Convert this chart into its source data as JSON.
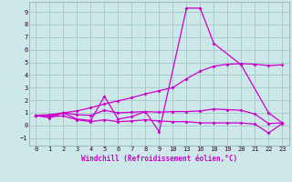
{
  "background_color": "#cce8e8",
  "grid_color": "#aacccc",
  "line_color": "#cc00cc",
  "xtick_labels": [
    "0",
    "1",
    "2",
    "3",
    "4",
    "5",
    "6",
    "7",
    "8",
    "9",
    "10",
    "13",
    "16",
    "18",
    "19",
    "20",
    "21",
    "22",
    "23"
  ],
  "xtick_pos": [
    0,
    1,
    2,
    3,
    4,
    5,
    6,
    7,
    8,
    9,
    10,
    11,
    12,
    13,
    14,
    15,
    16,
    17,
    18
  ],
  "yticks": [
    -1,
    0,
    1,
    2,
    3,
    4,
    5,
    6,
    7,
    8,
    9
  ],
  "xlabel": "Windchill (Refroidissement éolien,°C)",
  "ylim": [
    -1.6,
    9.8
  ],
  "xlim": [
    -0.5,
    18.5
  ],
  "lines": [
    {
      "x": [
        0,
        1,
        2,
        3,
        4,
        5,
        6,
        7,
        8,
        9,
        11,
        12,
        13,
        15,
        17,
        18
      ],
      "y": [
        0.8,
        0.6,
        1.0,
        0.5,
        0.4,
        2.3,
        0.5,
        0.7,
        1.1,
        -0.5,
        9.3,
        9.3,
        6.5,
        4.8,
        1.0,
        0.2
      ]
    },
    {
      "x": [
        0,
        1,
        2,
        3,
        4,
        5,
        6,
        7,
        8,
        9,
        10,
        11,
        12,
        13,
        14,
        15,
        16,
        17,
        18
      ],
      "y": [
        0.8,
        0.85,
        1.0,
        1.15,
        1.4,
        1.7,
        1.95,
        2.2,
        2.5,
        2.75,
        3.0,
        3.7,
        4.3,
        4.7,
        4.85,
        4.9,
        4.85,
        4.75,
        4.8
      ]
    },
    {
      "x": [
        0,
        1,
        2,
        3,
        4,
        5,
        6,
        7,
        8,
        9,
        10,
        11,
        12,
        13,
        14,
        15,
        16,
        17,
        18
      ],
      "y": [
        0.8,
        0.75,
        1.0,
        0.85,
        0.8,
        1.2,
        1.0,
        1.05,
        1.1,
        1.05,
        1.1,
        1.1,
        1.15,
        1.3,
        1.25,
        1.2,
        0.9,
        0.15,
        0.2
      ]
    },
    {
      "x": [
        0,
        1,
        2,
        3,
        4,
        5,
        6,
        7,
        8,
        9,
        10,
        11,
        12,
        13,
        14,
        15,
        16,
        17,
        18
      ],
      "y": [
        0.75,
        0.7,
        0.75,
        0.45,
        0.3,
        0.45,
        0.3,
        0.35,
        0.45,
        0.35,
        0.3,
        0.3,
        0.2,
        0.2,
        0.2,
        0.2,
        0.1,
        -0.6,
        0.15
      ]
    }
  ]
}
